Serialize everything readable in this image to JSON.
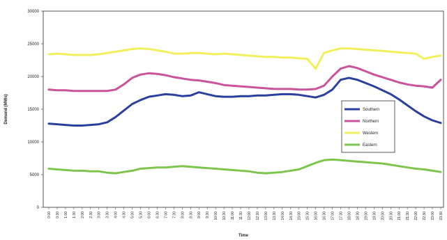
{
  "chart_data": {
    "type": "line",
    "title": "",
    "xlabel": "Time",
    "ylabel": "Demand (MWs)",
    "ylim": [
      0,
      30000
    ],
    "yticks": [
      0,
      5000,
      10000,
      15000,
      20000,
      25000,
      30000
    ],
    "grid": false,
    "legend_position": "right",
    "x": [
      "0:00",
      "0:30",
      "1:00",
      "1:30",
      "2:00",
      "2:30",
      "3:00",
      "3:30",
      "4:00",
      "4:30",
      "5:00",
      "5:30",
      "6:00",
      "6:30",
      "7:00",
      "7:30",
      "8:00",
      "8:30",
      "9:00",
      "9:30",
      "10:00",
      "10:30",
      "11:00",
      "11:30",
      "12:00",
      "12:30",
      "13:00",
      "13:30",
      "14:00",
      "14:30",
      "15:00",
      "15:30",
      "16:00",
      "16:30",
      "17:00",
      "17:30",
      "18:00",
      "18:30",
      "19:00",
      "19:30",
      "20:00",
      "20:30",
      "21:00",
      "21:30",
      "22:00",
      "22:30",
      "23:00",
      "23:30"
    ],
    "series": [
      {
        "name": "Southern",
        "color": "#2b3f9e",
        "values": [
          12800,
          12700,
          12600,
          12500,
          12500,
          12600,
          12700,
          13000,
          13800,
          14800,
          15800,
          16400,
          16900,
          17100,
          17300,
          17200,
          17000,
          17100,
          17600,
          17300,
          17000,
          16900,
          16900,
          17000,
          17000,
          17100,
          17100,
          17200,
          17300,
          17300,
          17200,
          17000,
          16800,
          17200,
          18000,
          19500,
          19800,
          19500,
          19000,
          18500,
          17900,
          17300,
          16500,
          15600,
          14700,
          13900,
          13300,
          12900
        ]
      },
      {
        "name": "Northern",
        "color": "#c9529a",
        "values": [
          18000,
          17900,
          17900,
          17800,
          17800,
          17800,
          17800,
          17800,
          18000,
          18800,
          19800,
          20300,
          20500,
          20400,
          20200,
          19900,
          19700,
          19500,
          19400,
          19200,
          19000,
          18700,
          18600,
          18500,
          18400,
          18300,
          18200,
          18100,
          18100,
          18100,
          18000,
          18000,
          18100,
          18600,
          20000,
          21200,
          21600,
          21300,
          20800,
          20300,
          19900,
          19500,
          19100,
          18800,
          18600,
          18500,
          18300,
          19500
        ]
      },
      {
        "name": "Western",
        "color": "#f2ef5c",
        "values": [
          23400,
          23500,
          23400,
          23300,
          23300,
          23300,
          23400,
          23600,
          23800,
          24000,
          24200,
          24300,
          24200,
          24000,
          23800,
          23500,
          23500,
          23600,
          23600,
          23500,
          23400,
          23500,
          23400,
          23300,
          23200,
          23100,
          23000,
          23000,
          22900,
          22900,
          22800,
          22700,
          21200,
          23600,
          24000,
          24300,
          24300,
          24200,
          24100,
          24000,
          23900,
          23800,
          23700,
          23600,
          23500,
          22700,
          23000,
          23200
        ]
      },
      {
        "name": "Eastern",
        "color": "#7fc44c",
        "values": [
          5900,
          5800,
          5700,
          5600,
          5600,
          5500,
          5500,
          5300,
          5200,
          5400,
          5600,
          5900,
          6000,
          6100,
          6100,
          6200,
          6300,
          6200,
          6100,
          6000,
          5900,
          5800,
          5700,
          5600,
          5500,
          5300,
          5200,
          5300,
          5400,
          5600,
          5800,
          6300,
          6800,
          7200,
          7300,
          7200,
          7100,
          7000,
          6900,
          6800,
          6700,
          6500,
          6300,
          6100,
          5900,
          5800,
          5600,
          5400
        ]
      }
    ]
  }
}
